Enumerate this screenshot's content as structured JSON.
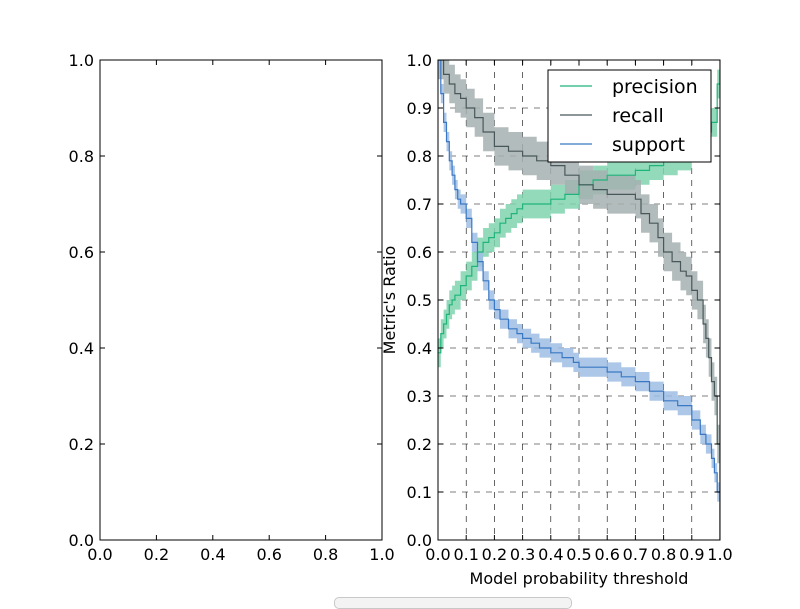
{
  "chart_data": [
    {
      "type": "empty",
      "xlim": [
        0,
        1
      ],
      "ylim": [
        0,
        1
      ],
      "xticks": [
        "0.0",
        "0.2",
        "0.4",
        "0.6",
        "0.8",
        "1.0"
      ],
      "yticks": [
        "0.0",
        "0.2",
        "0.4",
        "0.6",
        "0.8",
        "1.0"
      ],
      "grid": false
    },
    {
      "type": "line",
      "xlabel": "Model probability threshold",
      "ylabel": "Metric's Ratio",
      "xlim": [
        0,
        1
      ],
      "ylim": [
        0,
        1
      ],
      "xticks": [
        "0.0",
        "0.1",
        "0.2",
        "0.3",
        "0.4",
        "0.5",
        "0.6",
        "0.7",
        "0.8",
        "0.9",
        "1.0"
      ],
      "yticks": [
        "0.0",
        "0.1",
        "0.2",
        "0.3",
        "0.4",
        "0.5",
        "0.6",
        "0.7",
        "0.8",
        "0.9",
        "1.0"
      ],
      "grid": true,
      "legend_position": "top-right",
      "series": [
        {
          "name": "precision",
          "color": "#1fb47a",
          "band_color": "#80d4ae",
          "band_halfwidth": 0.03,
          "x": [
            0.0,
            0.01,
            0.02,
            0.03,
            0.04,
            0.05,
            0.06,
            0.08,
            0.1,
            0.12,
            0.14,
            0.16,
            0.18,
            0.2,
            0.22,
            0.24,
            0.26,
            0.28,
            0.3,
            0.33,
            0.36,
            0.4,
            0.45,
            0.5,
            0.55,
            0.6,
            0.65,
            0.7,
            0.75,
            0.8,
            0.85,
            0.9,
            0.95,
            0.97,
            0.99,
            1.0
          ],
          "y": [
            0.39,
            0.43,
            0.45,
            0.47,
            0.49,
            0.5,
            0.51,
            0.53,
            0.55,
            0.57,
            0.6,
            0.62,
            0.63,
            0.64,
            0.66,
            0.67,
            0.68,
            0.69,
            0.7,
            0.7,
            0.7,
            0.71,
            0.72,
            0.74,
            0.75,
            0.76,
            0.76,
            0.77,
            0.78,
            0.79,
            0.8,
            0.82,
            0.85,
            0.87,
            0.95,
            1.0
          ]
        },
        {
          "name": "recall",
          "color": "#48575a",
          "band_color": "#a6b0b0",
          "band_halfwidth": 0.04,
          "x": [
            0.0,
            0.02,
            0.04,
            0.06,
            0.08,
            0.1,
            0.13,
            0.16,
            0.2,
            0.25,
            0.3,
            0.35,
            0.4,
            0.45,
            0.5,
            0.55,
            0.6,
            0.65,
            0.7,
            0.72,
            0.75,
            0.78,
            0.8,
            0.83,
            0.86,
            0.88,
            0.9,
            0.92,
            0.94,
            0.95,
            0.96,
            0.97,
            0.98,
            0.99,
            1.0
          ],
          "y": [
            1.0,
            0.97,
            0.95,
            0.93,
            0.92,
            0.9,
            0.88,
            0.85,
            0.82,
            0.81,
            0.8,
            0.79,
            0.78,
            0.76,
            0.74,
            0.73,
            0.72,
            0.72,
            0.71,
            0.68,
            0.66,
            0.63,
            0.6,
            0.58,
            0.56,
            0.55,
            0.52,
            0.5,
            0.45,
            0.42,
            0.38,
            0.33,
            0.3,
            0.2,
            0.0
          ]
        },
        {
          "name": "support",
          "color": "#3a78c4",
          "band_color": "#9dbde3",
          "band_halfwidth": 0.02,
          "x": [
            0.0,
            0.01,
            0.02,
            0.03,
            0.04,
            0.05,
            0.06,
            0.07,
            0.08,
            0.1,
            0.12,
            0.14,
            0.16,
            0.18,
            0.2,
            0.22,
            0.25,
            0.28,
            0.3,
            0.33,
            0.36,
            0.4,
            0.44,
            0.48,
            0.5,
            0.55,
            0.6,
            0.65,
            0.7,
            0.75,
            0.8,
            0.85,
            0.9,
            0.93,
            0.95,
            0.97,
            0.98,
            0.99,
            1.0
          ],
          "y": [
            1.0,
            0.93,
            0.87,
            0.83,
            0.79,
            0.76,
            0.73,
            0.71,
            0.7,
            0.67,
            0.62,
            0.58,
            0.54,
            0.5,
            0.48,
            0.46,
            0.44,
            0.43,
            0.42,
            0.41,
            0.4,
            0.39,
            0.38,
            0.37,
            0.36,
            0.36,
            0.35,
            0.34,
            0.33,
            0.31,
            0.29,
            0.28,
            0.25,
            0.22,
            0.2,
            0.17,
            0.14,
            0.1,
            0.0
          ]
        }
      ]
    }
  ]
}
